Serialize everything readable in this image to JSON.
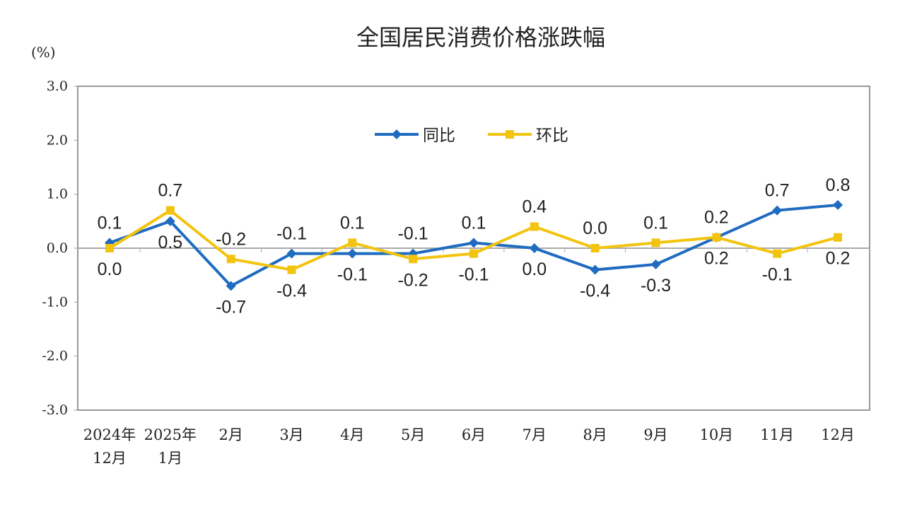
{
  "chart_data": {
    "type": "line",
    "title": "全国居民消费价格涨跌幅",
    "ylabel": "(%)",
    "ylim": [
      -3.0,
      3.0
    ],
    "yticks": [
      "3.0",
      "2.0",
      "1.0",
      "0.0",
      "-1.0",
      "-2.0",
      "-3.0"
    ],
    "ytick_values": [
      3,
      2,
      1,
      0,
      -1,
      -2,
      -3
    ],
    "categories": [
      [
        "2024年",
        "12月"
      ],
      [
        "2025年",
        "1月"
      ],
      [
        "2月"
      ],
      [
        "3月"
      ],
      [
        "4月"
      ],
      [
        "5月"
      ],
      [
        "6月"
      ],
      [
        "7月"
      ],
      [
        "8月"
      ],
      [
        "9月"
      ],
      [
        "10月"
      ],
      [
        "11月"
      ],
      [
        "12月"
      ]
    ],
    "grid": false,
    "legend_position": "top-center",
    "series": [
      {
        "name": "同比",
        "color": "#1f6bc0",
        "marker": "diamond",
        "values": [
          0.1,
          0.5,
          -0.7,
          -0.1,
          -0.1,
          -0.1,
          0.1,
          0.0,
          -0.4,
          -0.3,
          0.2,
          0.7,
          0.8
        ],
        "label_pos": [
          "above",
          "below",
          "below",
          "above",
          "below",
          "above",
          "above",
          "below",
          "below",
          "below",
          "above",
          "above",
          "above"
        ]
      },
      {
        "name": "环比",
        "color": "#f2c40f",
        "marker": "square",
        "values": [
          0.0,
          0.7,
          -0.2,
          -0.4,
          0.1,
          -0.2,
          -0.1,
          0.4,
          0.0,
          0.1,
          0.2,
          -0.1,
          0.2
        ],
        "label_pos": [
          "below",
          "above",
          "above",
          "below",
          "above",
          "below",
          "below",
          "above",
          "above",
          "above",
          "below",
          "below",
          "below"
        ]
      }
    ]
  }
}
